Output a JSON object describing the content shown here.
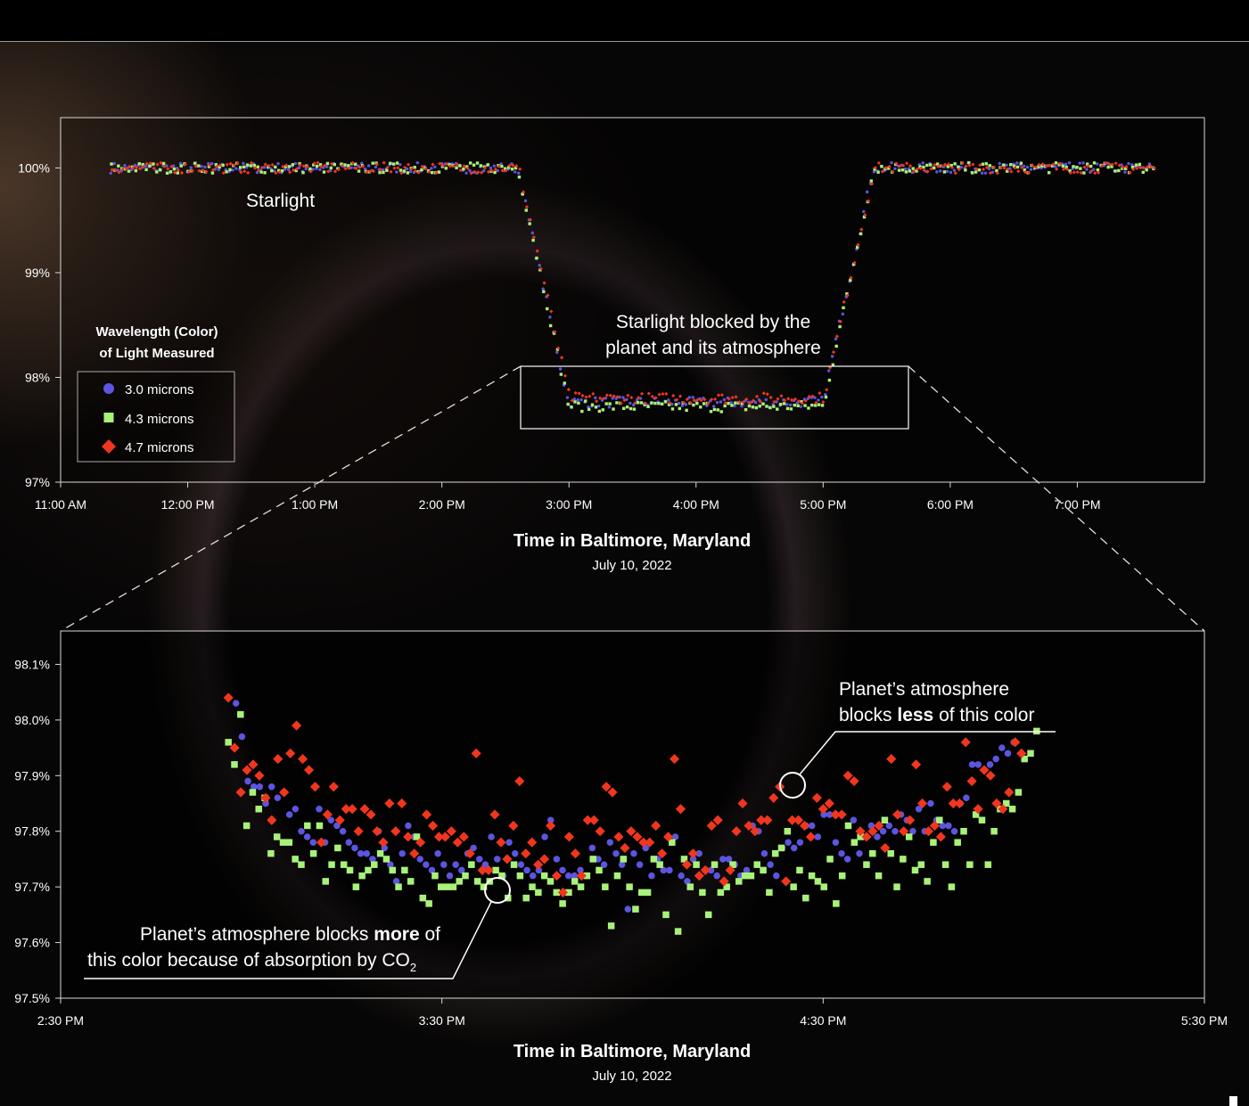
{
  "colors": {
    "c30": "#5b55e0",
    "c43": "#a8f27a",
    "c47": "#f0361e",
    "frame": "#d9d9d9"
  },
  "legend": {
    "title_line1": "Wavelength (Color)",
    "title_line2": "of Light Measured",
    "items": [
      {
        "label": "3.0 microns",
        "marker": "circle",
        "color": "#5b55e0"
      },
      {
        "label": "4.3 microns",
        "marker": "square",
        "color": "#a8f27a"
      },
      {
        "label": "4.7 microns",
        "marker": "diamond",
        "color": "#f0361e"
      }
    ]
  },
  "annotations": {
    "starlight": "Starlight",
    "blocked_line1": "Starlight blocked by the",
    "blocked_line2": "planet and its atmosphere",
    "less_line1": "Planet’s atmosphere",
    "less_line2_pre": "blocks ",
    "less_line2_bold": "less",
    "less_line2_post": " of this color",
    "more_line1_pre": "Planet’s atmosphere blocks ",
    "more_line1_bold": "more",
    "more_line1_post": " of",
    "more_line2_pre": "this color because of absorption by CO",
    "more_line2_sub": "2"
  },
  "chart_data": [
    {
      "type": "scatter",
      "xlabel": "Time in Baltimore, Maryland",
      "subtitle": "July 10, 2022",
      "x_ticks": [
        "11:00 AM",
        "12:00 PM",
        "1:00 PM",
        "2:00 PM",
        "3:00 PM",
        "4:00 PM",
        "5:00 PM",
        "6:00 PM",
        "7:00 PM"
      ],
      "y_ticks": [
        "100%",
        "99%",
        "98%",
        "97%"
      ],
      "x_range_hours": [
        11.0,
        20.0
      ],
      "ylim": [
        97.0,
        100.48
      ],
      "transit": {
        "start_hour": 11.4,
        "end_hour": 19.6,
        "ingress_start": 2.6,
        "ingress_end": 3.0,
        "egress_start": 5.0,
        "egress_end": 5.4,
        "baseline": 100.0,
        "depth_floor": 97.75
      },
      "series": [
        {
          "name": "3.0 microns",
          "marker": "circle",
          "color": "#5b55e0",
          "floor": 97.76
        },
        {
          "name": "4.3 microns",
          "marker": "square",
          "color": "#a8f27a",
          "floor": 97.72
        },
        {
          "name": "4.7 microns",
          "marker": "diamond",
          "color": "#f0361e",
          "floor": 97.8
        }
      ],
      "zoom_box": {
        "x_hours": [
          2.5,
          5.5
        ],
        "y": [
          97.5,
          98.1
        ]
      }
    },
    {
      "type": "scatter",
      "xlabel": "Time in Baltimore, Maryland",
      "subtitle": "July 10, 2022",
      "x_ticks": [
        "2:30 PM",
        "3:30 PM",
        "4:30 PM",
        "5:30 PM"
      ],
      "y_ticks": [
        "98.1%",
        "98.0%",
        "97.9%",
        "97.8%",
        "97.7%",
        "97.6%",
        "97.5%"
      ],
      "x_range_hours": [
        14.5,
        17.5
      ],
      "ylim": [
        97.5,
        98.16
      ],
      "series": [
        {
          "name": "3.0 microns",
          "marker": "circle",
          "color": "#5b55e0",
          "x_start": 14.96,
          "x_end": 17.0,
          "values": [
            98.03,
            97.97,
            97.89,
            97.88,
            97.88,
            97.85,
            97.88,
            97.86,
            97.87,
            97.83,
            97.84,
            97.8,
            97.79,
            97.78,
            97.84,
            97.78,
            97.82,
            97.81,
            97.8,
            97.78,
            97.77,
            97.76,
            97.76,
            97.75,
            97.8,
            97.77,
            97.74,
            97.71,
            97.76,
            97.81,
            97.79,
            97.75,
            97.74,
            97.73,
            97.76,
            97.74,
            97.72,
            97.74,
            97.73,
            97.76,
            97.77,
            97.75,
            97.74,
            97.79,
            97.75,
            97.72,
            97.78,
            97.76,
            97.74,
            97.73,
            97.72,
            97.73,
            97.79,
            97.82,
            97.75,
            97.73,
            97.72,
            97.72,
            97.73,
            97.72,
            97.77,
            97.75,
            97.74,
            97.78,
            97.76,
            97.74,
            97.66,
            97.76,
            97.74,
            97.77,
            97.72,
            97.75,
            97.73,
            97.73,
            97.79,
            97.72,
            97.71,
            97.75,
            97.76,
            97.73,
            97.73,
            97.72,
            97.75,
            97.75,
            97.74,
            97.72,
            97.73,
            97.81,
            97.8,
            97.76,
            97.74,
            97.72,
            97.77,
            97.78,
            97.77,
            97.78,
            97.81,
            97.81,
            97.79,
            97.83,
            97.83,
            97.78,
            97.76,
            97.75,
            97.82,
            97.76,
            97.79,
            97.81,
            97.79,
            97.8,
            97.81,
            97.8,
            97.83,
            97.82,
            97.8,
            97.84,
            97.8,
            97.85,
            97.82,
            97.81,
            97.81,
            97.8,
            97.85,
            97.86,
            97.92,
            97.92,
            97.91,
            97.92,
            97.93,
            97.95,
            97.94,
            97.96
          ]
        },
        {
          "name": "4.3 microns",
          "marker": "square",
          "color": "#a8f27a",
          "x_start": 14.94,
          "x_end": 17.06,
          "values": [
            97.96,
            97.92,
            98.01,
            97.81,
            97.87,
            97.84,
            97.86,
            97.76,
            97.79,
            97.78,
            97.78,
            97.75,
            97.74,
            97.81,
            97.76,
            97.81,
            97.71,
            97.74,
            97.77,
            97.74,
            97.73,
            97.7,
            97.72,
            97.73,
            97.74,
            97.76,
            97.75,
            97.73,
            97.7,
            97.73,
            97.71,
            97.79,
            97.68,
            97.67,
            97.72,
            97.7,
            97.7,
            97.7,
            97.71,
            97.72,
            97.74,
            97.71,
            97.7,
            97.71,
            97.73,
            97.72,
            97.68,
            97.74,
            97.72,
            97.68,
            97.7,
            97.69,
            97.72,
            97.71,
            97.69,
            97.67,
            97.69,
            97.71,
            97.7,
            97.72,
            97.75,
            97.73,
            97.7,
            97.63,
            97.72,
            97.75,
            97.7,
            97.66,
            97.69,
            97.69,
            97.75,
            97.74,
            97.65,
            97.78,
            97.62,
            97.75,
            97.7,
            97.74,
            97.69,
            97.65,
            97.74,
            97.69,
            97.7,
            97.74,
            97.71,
            97.72,
            97.72,
            97.74,
            97.73,
            97.69,
            97.76,
            97.77,
            97.8,
            97.7,
            97.73,
            97.68,
            97.72,
            97.71,
            97.7,
            97.75,
            97.67,
            97.72,
            97.81,
            97.78,
            97.79,
            97.74,
            97.76,
            97.72,
            97.82,
            97.76,
            97.7,
            97.75,
            97.79,
            97.73,
            97.74,
            97.71,
            97.78,
            97.82,
            97.74,
            97.7,
            97.78,
            97.8,
            97.74,
            97.83,
            97.82,
            97.74,
            97.8,
            97.84,
            97.85,
            97.84,
            97.87,
            97.93,
            97.94,
            97.98
          ]
        },
        {
          "name": "4.7 microns",
          "marker": "diamond",
          "color": "#f0361e",
          "x_start": 14.94,
          "x_end": 17.02,
          "values": [
            98.04,
            97.95,
            97.87,
            97.91,
            97.92,
            97.9,
            97.86,
            97.82,
            97.93,
            97.87,
            97.94,
            97.99,
            97.93,
            97.91,
            97.88,
            97.78,
            97.83,
            97.88,
            97.82,
            97.84,
            97.84,
            97.8,
            97.84,
            97.83,
            97.8,
            97.78,
            97.85,
            97.8,
            97.85,
            97.79,
            97.76,
            97.78,
            97.83,
            97.81,
            97.79,
            97.79,
            97.8,
            97.78,
            97.79,
            97.76,
            97.94,
            97.73,
            97.73,
            97.83,
            97.78,
            97.75,
            97.81,
            97.89,
            97.76,
            97.78,
            97.74,
            97.75,
            97.81,
            97.72,
            97.69,
            97.79,
            97.76,
            97.72,
            97.82,
            97.82,
            97.8,
            97.88,
            97.87,
            97.79,
            97.77,
            97.8,
            97.79,
            97.78,
            97.78,
            97.81,
            97.76,
            97.79,
            97.93,
            97.84,
            97.74,
            97.76,
            97.72,
            97.73,
            97.81,
            97.82,
            97.71,
            97.73,
            97.8,
            97.85,
            97.81,
            97.8,
            97.82,
            97.82,
            97.86,
            97.88,
            97.71,
            97.82,
            97.82,
            97.81,
            97.79,
            97.86,
            97.84,
            97.85,
            97.83,
            97.83,
            97.9,
            97.89,
            97.8,
            97.79,
            97.8,
            97.81,
            97.77,
            97.93,
            97.83,
            97.8,
            97.82,
            97.92,
            97.85,
            97.8,
            97.81,
            97.79,
            97.88,
            97.85,
            97.85,
            97.96,
            97.89,
            97.84,
            97.91,
            97.9,
            97.85,
            97.84,
            97.87,
            97.96,
            97.94
          ]
        }
      ]
    }
  ]
}
